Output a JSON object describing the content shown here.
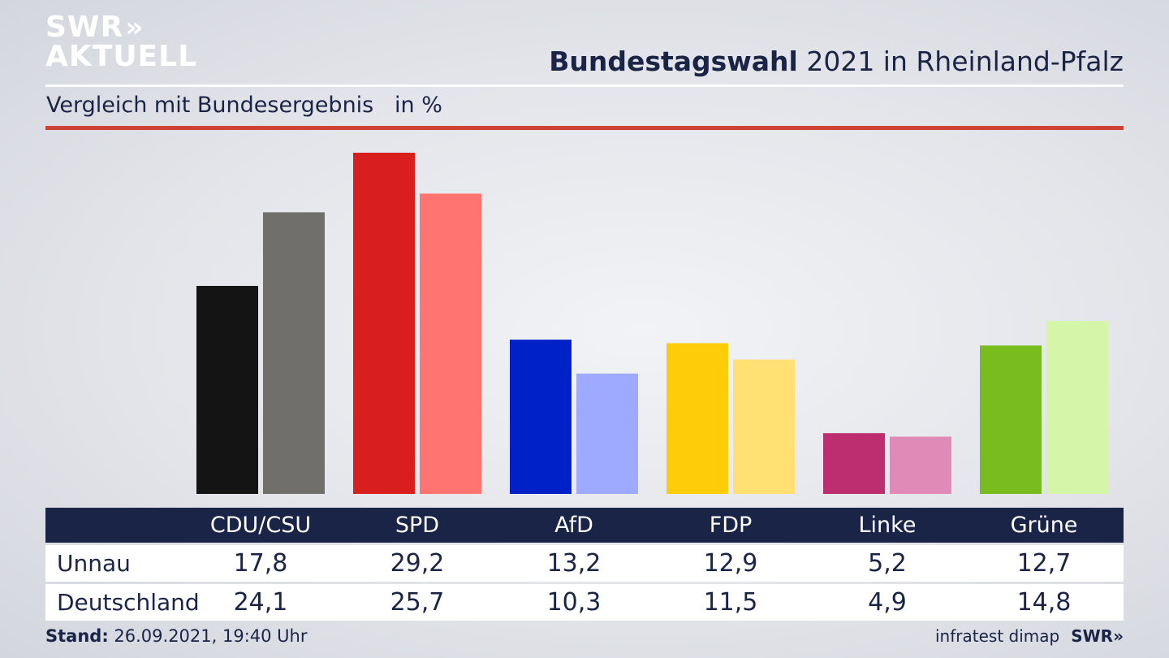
{
  "logo": {
    "line1": "SWR",
    "chevrons": "»",
    "line2": "AKTUELL"
  },
  "header": {
    "title_bold": "Bundestagswahl",
    "title_rest": " 2021 in Rheinland-Pfalz",
    "subtitle": "Vergleich mit Bundesergebnis   in %"
  },
  "colors": {
    "navy": "#1a2447",
    "accent_line": "#cc4336",
    "parties": {
      "CDU/CSU": {
        "primary": "#141414",
        "secondary": "#706f6c"
      },
      "SPD": {
        "primary": "#d91e1e",
        "secondary": "#ff7470"
      },
      "AfD": {
        "primary": "#0020c8",
        "secondary": "#9eaaff"
      },
      "FDP": {
        "primary": "#ffcc0a",
        "secondary": "#fee172"
      },
      "Linke": {
        "primary": "#bd2e70",
        "secondary": "#e08ab8"
      },
      "Grüne": {
        "primary": "#79bc1e",
        "secondary": "#d5f5a8"
      }
    }
  },
  "chart_data": {
    "type": "bar",
    "categories": [
      "CDU/CSU",
      "SPD",
      "AfD",
      "FDP",
      "Linke",
      "Grüne"
    ],
    "series": [
      {
        "name": "Unnau",
        "values": [
          17.8,
          29.2,
          13.2,
          12.9,
          5.2,
          12.7
        ],
        "display": [
          "17,8",
          "29,2",
          "13,2",
          "12,9",
          "5,2",
          "12,7"
        ]
      },
      {
        "name": "Deutschland",
        "values": [
          24.1,
          25.7,
          10.3,
          11.5,
          4.9,
          14.8
        ],
        "display": [
          "24,1",
          "25,7",
          "10,3",
          "11,5",
          "4,9",
          "14,8"
        ]
      }
    ],
    "ylim": [
      0,
      29.2
    ],
    "grid": false
  },
  "footer": {
    "stand_label": "Stand:",
    "stand_value": " 26.09.2021, 19:40 Uhr",
    "source": "infratest dimap",
    "brand": "SWR»"
  }
}
